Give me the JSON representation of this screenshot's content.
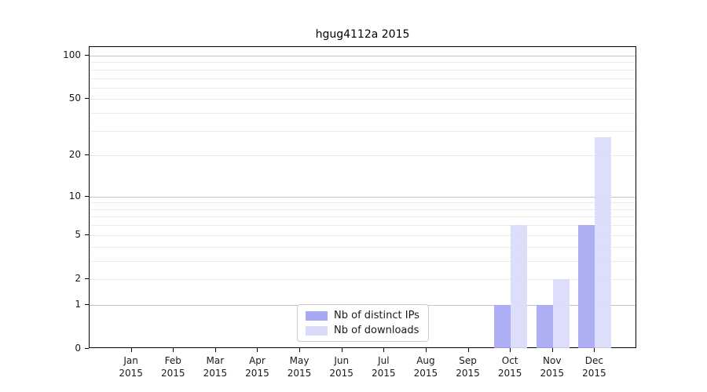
{
  "title": "hgug4112a 2015",
  "chart_data": {
    "type": "bar",
    "title": "hgug4112a 2015",
    "categories": [
      "Jan",
      "Feb",
      "Mar",
      "Apr",
      "May",
      "Jun",
      "Jul",
      "Aug",
      "Sep",
      "Oct",
      "Nov",
      "Dec"
    ],
    "category_year": "2015",
    "series": [
      {
        "name": "Nb of distinct IPs",
        "color": "#a6a7f2",
        "values": [
          0,
          0,
          0,
          0,
          0,
          0,
          0,
          0,
          0,
          1,
          1,
          6
        ]
      },
      {
        "name": "Nb of downloads",
        "color": "#dadbf9",
        "values": [
          0,
          0,
          0,
          0,
          0,
          0,
          0,
          0,
          0,
          6,
          2,
          27
        ]
      }
    ],
    "xlabel": "",
    "ylabel": "",
    "yscale": "log1p",
    "y_ticks": [
      0,
      1,
      2,
      5,
      10,
      20,
      50,
      100
    ],
    "ylim": [
      0,
      100
    ],
    "grid": "on",
    "grid_major_values": [
      1,
      10,
      100
    ],
    "grid_minor_values": [
      2,
      3,
      4,
      5,
      6,
      7,
      8,
      9,
      20,
      30,
      40,
      50,
      60,
      70,
      80,
      90
    ],
    "legend_position": "bottom-center"
  },
  "colors": {
    "axis": "#000000",
    "grid_major": "#c3c3c3",
    "grid_minor": "#ebebeb",
    "background": "#ffffff",
    "legend_border": "#cccccc",
    "text": "#1a1a1a"
  }
}
